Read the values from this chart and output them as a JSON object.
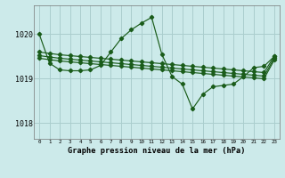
{
  "title": "Graphe pression niveau de la mer (hPa)",
  "background_color": "#cceaea",
  "grid_color": "#aacece",
  "line_color": "#1a5c1a",
  "xlim": [
    -0.5,
    23.5
  ],
  "ylim": [
    1017.65,
    1020.65
  ],
  "yticks": [
    1018,
    1019,
    1020
  ],
  "xticks": [
    0,
    1,
    2,
    3,
    4,
    5,
    6,
    7,
    8,
    9,
    10,
    11,
    12,
    13,
    14,
    15,
    16,
    17,
    18,
    19,
    20,
    21,
    22,
    23
  ],
  "s1": [
    1020.0,
    1019.35,
    1019.2,
    1019.18,
    1019.18,
    1019.2,
    1019.3,
    1019.6,
    1019.9,
    1020.1,
    1020.25,
    1020.38,
    1019.55,
    1019.05,
    1018.88,
    1018.32,
    1018.65,
    1018.82,
    1018.85,
    1018.88,
    1019.05,
    1019.25,
    1019.28,
    1019.5
  ],
  "s2": [
    1019.6,
    1019.57,
    1019.54,
    1019.52,
    1019.5,
    1019.48,
    1019.46,
    1019.44,
    1019.42,
    1019.4,
    1019.38,
    1019.36,
    1019.34,
    1019.32,
    1019.3,
    1019.28,
    1019.26,
    1019.24,
    1019.22,
    1019.2,
    1019.18,
    1019.16,
    1019.14,
    1019.5
  ],
  "s3": [
    1019.52,
    1019.49,
    1019.46,
    1019.44,
    1019.42,
    1019.4,
    1019.38,
    1019.36,
    1019.34,
    1019.32,
    1019.3,
    1019.28,
    1019.26,
    1019.24,
    1019.22,
    1019.2,
    1019.18,
    1019.16,
    1019.14,
    1019.12,
    1019.1,
    1019.08,
    1019.06,
    1019.46
  ],
  "s4": [
    1019.46,
    1019.43,
    1019.4,
    1019.38,
    1019.36,
    1019.34,
    1019.32,
    1019.3,
    1019.28,
    1019.26,
    1019.24,
    1019.22,
    1019.2,
    1019.18,
    1019.16,
    1019.14,
    1019.12,
    1019.1,
    1019.08,
    1019.06,
    1019.04,
    1019.02,
    1019.0,
    1019.42
  ]
}
